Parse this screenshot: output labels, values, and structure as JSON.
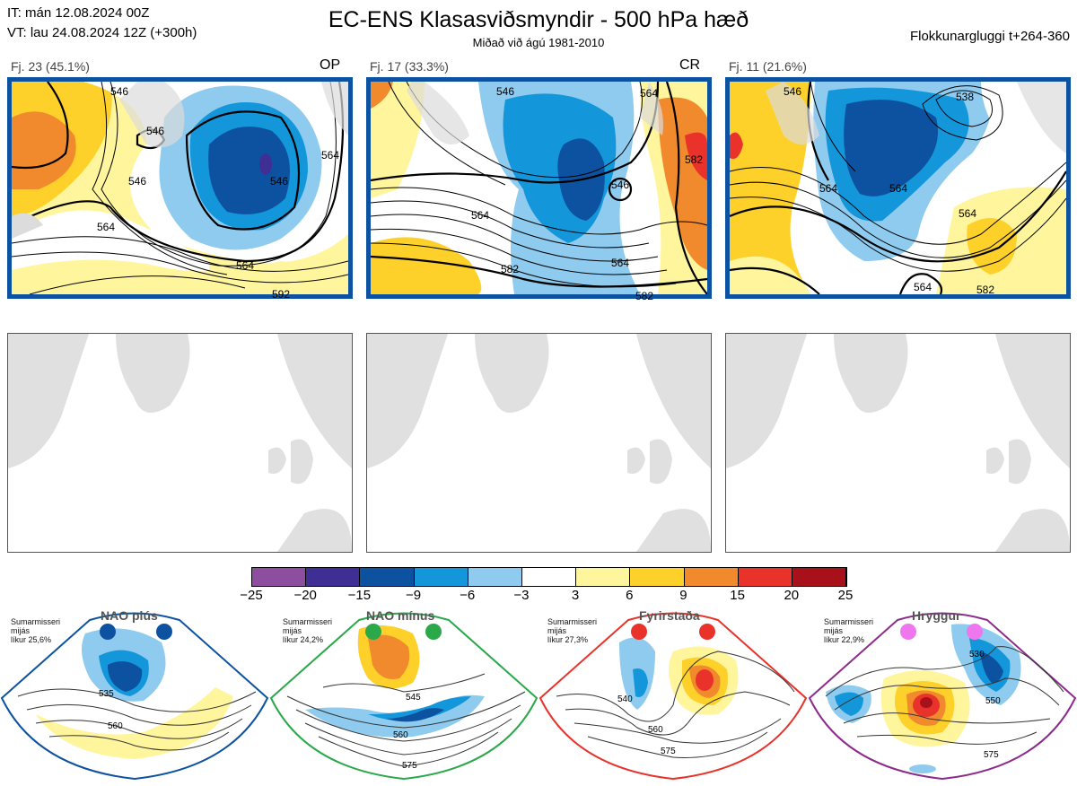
{
  "header": {
    "it_line": "IT: mán 12.08.2024 00Z",
    "vt_line": "VT: lau 24.08.2024 12Z  (+300h)",
    "title": "EC-ENS Klasasviðsmyndir - 500 hPa hæð",
    "subtitle": "Miðað við ágú 1981-2010",
    "window": "Flokkunargluggi t+264-360"
  },
  "panels": [
    {
      "label": "Fj. 23 (45.1%)",
      "tag": "OP",
      "contours": [
        "546",
        "546",
        "546",
        "564",
        "564",
        "564",
        "546",
        "592"
      ]
    },
    {
      "label": "Fj. 17 (33.3%)",
      "tag": "CR",
      "contours": [
        "546",
        "546",
        "564",
        "564",
        "582",
        "582",
        "564",
        "582"
      ]
    },
    {
      "label": "Fj. 11 (21.6%)",
      "tag": "",
      "contours": [
        "538",
        "546",
        "564",
        "564",
        "564",
        "564",
        "582"
      ]
    }
  ],
  "colorbar": {
    "ticks": [
      "−25",
      "−20",
      "−15",
      "−9",
      "−6",
      "−3",
      "3",
      "6",
      "9",
      "15",
      "20",
      "25"
    ],
    "colors": [
      "#8e4ea0",
      "#3f2f95",
      "#0d52a0",
      "#1496da",
      "#8ecbee",
      "#ffffff",
      "#fff59c",
      "#fed12a",
      "#f18a2c",
      "#e8322a",
      "#a8101a"
    ]
  },
  "regimes": [
    {
      "name": "NAO plús",
      "note": [
        "Sumarmisseri",
        "mijás",
        "líkur 25,6%"
      ],
      "labels": [
        "535",
        "560"
      ],
      "border": "#0d52a0",
      "dot": "#0d52a0"
    },
    {
      "name": "NAO mínus",
      "note": [
        "Sumarmisseri",
        "mijás",
        "líkur 24,2%"
      ],
      "labels": [
        "545",
        "560",
        "575"
      ],
      "border": "#2aa84a",
      "dot": "#2aa84a"
    },
    {
      "name": "Fyrirstaða",
      "note": [
        "Sumarmisseri",
        "mijás",
        "líkur 27,3%"
      ],
      "labels": [
        "540",
        "560",
        "575"
      ],
      "border": "#e8322a",
      "dot": "#e8322a"
    },
    {
      "name": "Hryggur",
      "note": [
        "Sumarmisseri",
        "mijás",
        "líkur 22,9%"
      ],
      "labels": [
        "530",
        "550",
        "575"
      ],
      "border": "#8c2b8c",
      "dot": "#ee77ee"
    }
  ]
}
